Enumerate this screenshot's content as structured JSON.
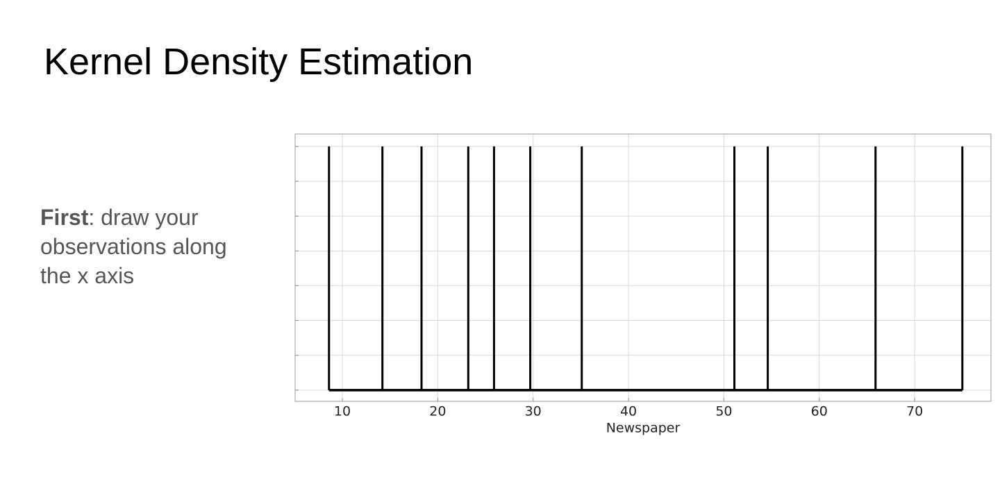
{
  "title": "Kernel Density Estimation",
  "note": {
    "bold": "First",
    "text": ": draw your observations along the x axis"
  },
  "chart_data": {
    "type": "rug",
    "xlabel": "Newspaper",
    "x": [
      8.6,
      14.2,
      18.3,
      23.2,
      25.9,
      29.7,
      35.1,
      51.1,
      54.6,
      65.9,
      75.0
    ],
    "values": [
      1,
      1,
      1,
      1,
      1,
      1,
      1,
      1,
      1,
      1,
      1
    ],
    "color": "#000000",
    "xlim": [
      5.05,
      78.0
    ],
    "xticks": [
      10,
      20,
      30,
      40,
      50,
      60,
      70
    ],
    "ylim": [
      -0.046,
      1.051
    ],
    "yticks": [
      0,
      0.143,
      0.286,
      0.429,
      0.571,
      0.714,
      0.857,
      1
    ],
    "grid": true
  }
}
